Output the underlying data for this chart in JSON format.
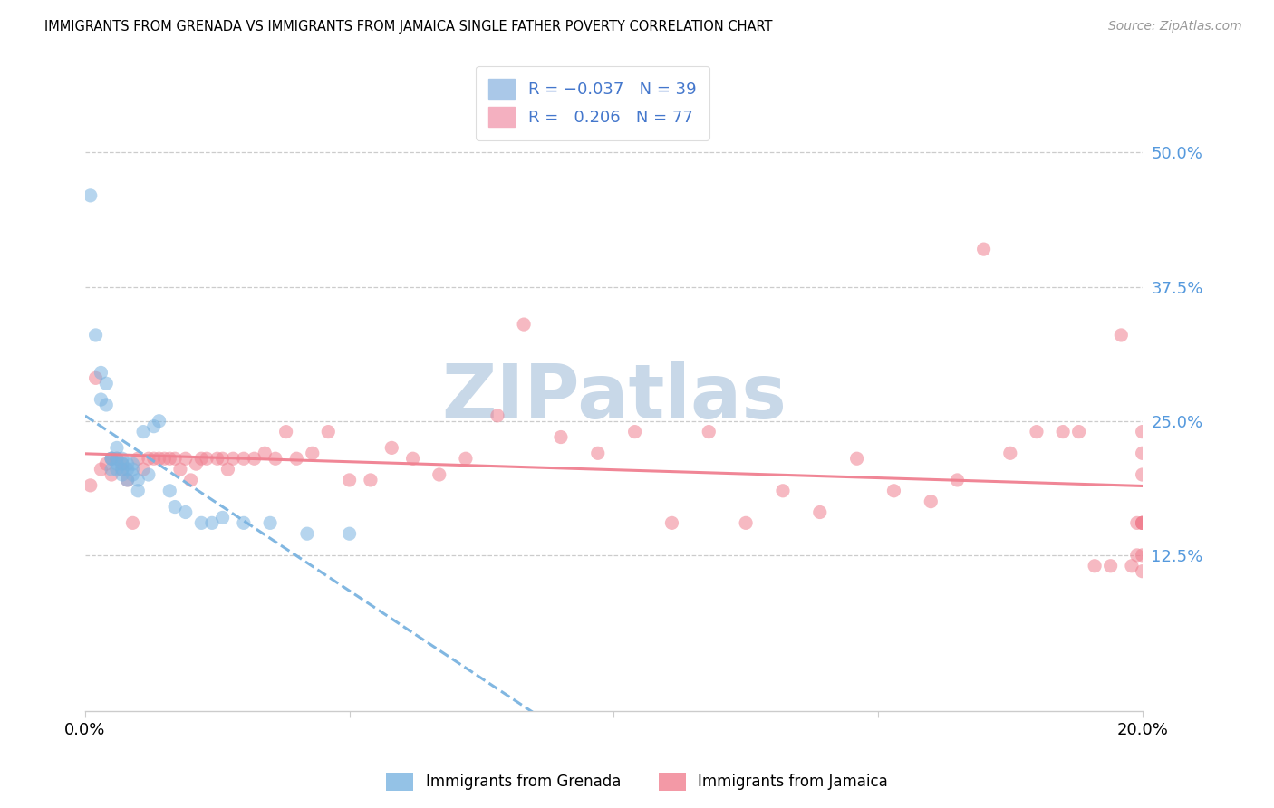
{
  "title": "IMMIGRANTS FROM GRENADA VS IMMIGRANTS FROM JAMAICA SINGLE FATHER POVERTY CORRELATION CHART",
  "source": "Source: ZipAtlas.com",
  "ylabel": "Single Father Poverty",
  "ytick_labels": [
    "50.0%",
    "37.5%",
    "25.0%",
    "12.5%"
  ],
  "ytick_values": [
    0.5,
    0.375,
    0.25,
    0.125
  ],
  "xlim": [
    0.0,
    0.2
  ],
  "ylim": [
    -0.02,
    0.565
  ],
  "grenada_color": "#7ab3e0",
  "jamaica_color": "#f08090",
  "watermark_text": "ZIPatlas",
  "watermark_color": "#c8d8e8",
  "grenada_x": [
    0.001,
    0.002,
    0.003,
    0.003,
    0.004,
    0.004,
    0.005,
    0.005,
    0.005,
    0.006,
    0.006,
    0.006,
    0.006,
    0.007,
    0.007,
    0.007,
    0.007,
    0.008,
    0.008,
    0.008,
    0.009,
    0.009,
    0.009,
    0.01,
    0.01,
    0.011,
    0.012,
    0.013,
    0.014,
    0.016,
    0.017,
    0.019,
    0.022,
    0.024,
    0.026,
    0.03,
    0.035,
    0.042,
    0.05
  ],
  "grenada_y": [
    0.46,
    0.33,
    0.295,
    0.27,
    0.285,
    0.265,
    0.205,
    0.215,
    0.215,
    0.225,
    0.215,
    0.21,
    0.205,
    0.215,
    0.205,
    0.21,
    0.2,
    0.205,
    0.195,
    0.21,
    0.21,
    0.205,
    0.2,
    0.195,
    0.185,
    0.24,
    0.2,
    0.245,
    0.25,
    0.185,
    0.17,
    0.165,
    0.155,
    0.155,
    0.16,
    0.155,
    0.155,
    0.145,
    0.145
  ],
  "jamaica_x": [
    0.001,
    0.002,
    0.003,
    0.004,
    0.005,
    0.005,
    0.006,
    0.007,
    0.007,
    0.008,
    0.009,
    0.01,
    0.011,
    0.012,
    0.013,
    0.014,
    0.015,
    0.016,
    0.017,
    0.018,
    0.019,
    0.02,
    0.021,
    0.022,
    0.023,
    0.025,
    0.026,
    0.027,
    0.028,
    0.03,
    0.032,
    0.034,
    0.036,
    0.038,
    0.04,
    0.043,
    0.046,
    0.05,
    0.054,
    0.058,
    0.062,
    0.067,
    0.072,
    0.078,
    0.083,
    0.09,
    0.097,
    0.104,
    0.111,
    0.118,
    0.125,
    0.132,
    0.139,
    0.146,
    0.153,
    0.16,
    0.165,
    0.17,
    0.175,
    0.18,
    0.185,
    0.188,
    0.191,
    0.194,
    0.196,
    0.198,
    0.199,
    0.199,
    0.2,
    0.2,
    0.2,
    0.2,
    0.2,
    0.2,
    0.2,
    0.2,
    0.2
  ],
  "jamaica_y": [
    0.19,
    0.29,
    0.205,
    0.21,
    0.215,
    0.2,
    0.215,
    0.205,
    0.21,
    0.195,
    0.155,
    0.215,
    0.205,
    0.215,
    0.215,
    0.215,
    0.215,
    0.215,
    0.215,
    0.205,
    0.215,
    0.195,
    0.21,
    0.215,
    0.215,
    0.215,
    0.215,
    0.205,
    0.215,
    0.215,
    0.215,
    0.22,
    0.215,
    0.24,
    0.215,
    0.22,
    0.24,
    0.195,
    0.195,
    0.225,
    0.215,
    0.2,
    0.215,
    0.255,
    0.34,
    0.235,
    0.22,
    0.24,
    0.155,
    0.24,
    0.155,
    0.185,
    0.165,
    0.215,
    0.185,
    0.175,
    0.195,
    0.41,
    0.22,
    0.24,
    0.24,
    0.24,
    0.115,
    0.115,
    0.33,
    0.115,
    0.125,
    0.155,
    0.155,
    0.155,
    0.125,
    0.11,
    0.155,
    0.2,
    0.22,
    0.24,
    0.155
  ]
}
